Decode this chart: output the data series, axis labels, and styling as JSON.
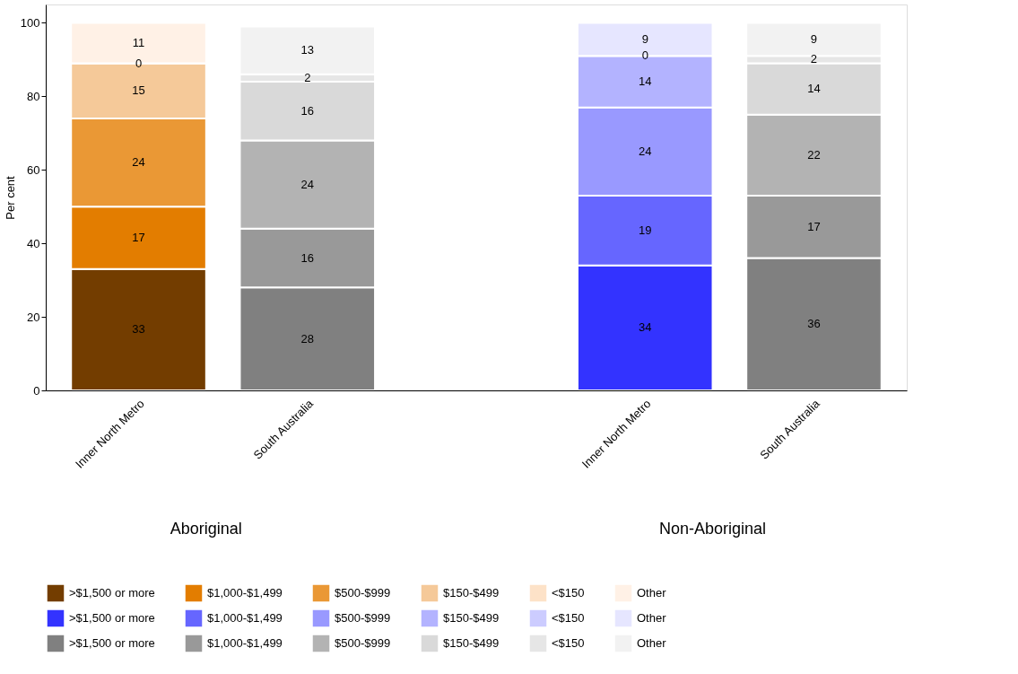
{
  "chart_data": {
    "type": "bar",
    "stacked": true,
    "ylabel": "Per cent",
    "categories": [
      "Inner North Metro",
      "South Australia",
      null,
      "Inner North Metro",
      "South Australia"
    ],
    "annotations": [
      "Aboriginal",
      "Non-Aboriginal"
    ],
    "ylim": [
      0,
      105
    ],
    "yticks": [
      0,
      20,
      40,
      60,
      80,
      100
    ],
    "grid": false,
    "legend": "bottom",
    "data_labels": true,
    "series": [
      {
        "name": ">$1,500 or more",
        "color": "#733d00",
        "values": [
          33,
          null,
          null,
          null,
          null
        ]
      },
      {
        "name": "$1,000-$1,499",
        "color": "#e37d00",
        "values": [
          17,
          null,
          null,
          null,
          null
        ]
      },
      {
        "name": "$500-$999",
        "color": "#ea9835",
        "values": [
          24,
          null,
          null,
          null,
          null
        ]
      },
      {
        "name": "$150-$499",
        "color": "#f5c999",
        "values": [
          15,
          null,
          null,
          null,
          null
        ]
      },
      {
        "name": "<$150",
        "color": "#fde2c8",
        "values": [
          0,
          null,
          null,
          null,
          null
        ]
      },
      {
        "name": "Other",
        "color": "#fff1e6",
        "values": [
          11,
          null,
          null,
          null,
          null
        ]
      },
      {
        "name": ">$1,500 or more",
        "color": "#3333ff",
        "values": [
          null,
          null,
          null,
          34,
          null
        ]
      },
      {
        "name": "$1,000-$1,499",
        "color": "#6666ff",
        "values": [
          null,
          null,
          null,
          19,
          null
        ]
      },
      {
        "name": "$500-$999",
        "color": "#9999ff",
        "values": [
          null,
          null,
          null,
          24,
          null
        ]
      },
      {
        "name": "$150-$499",
        "color": "#b3b3ff",
        "values": [
          null,
          null,
          null,
          14,
          null
        ]
      },
      {
        "name": "<$150",
        "color": "#ccccff",
        "values": [
          null,
          null,
          null,
          0,
          null
        ]
      },
      {
        "name": "Other",
        "color": "#e6e6ff",
        "values": [
          null,
          null,
          null,
          9,
          null
        ]
      },
      {
        "name": ">$1,500 or more",
        "color": "#808080",
        "values": [
          null,
          28,
          null,
          null,
          36
        ]
      },
      {
        "name": "$1,000-$1,499",
        "color": "#999999",
        "values": [
          null,
          16,
          null,
          null,
          17
        ]
      },
      {
        "name": "$500-$999",
        "color": "#b3b3b3",
        "values": [
          null,
          24,
          null,
          null,
          22
        ]
      },
      {
        "name": "$150-$499",
        "color": "#d9d9d9",
        "values": [
          null,
          16,
          null,
          null,
          14
        ]
      },
      {
        "name": "<$150",
        "color": "#e6e6e6",
        "values": [
          null,
          2,
          null,
          null,
          2
        ]
      },
      {
        "name": "Other",
        "color": "#f2f2f2",
        "values": [
          null,
          13,
          null,
          null,
          9
        ]
      }
    ]
  }
}
